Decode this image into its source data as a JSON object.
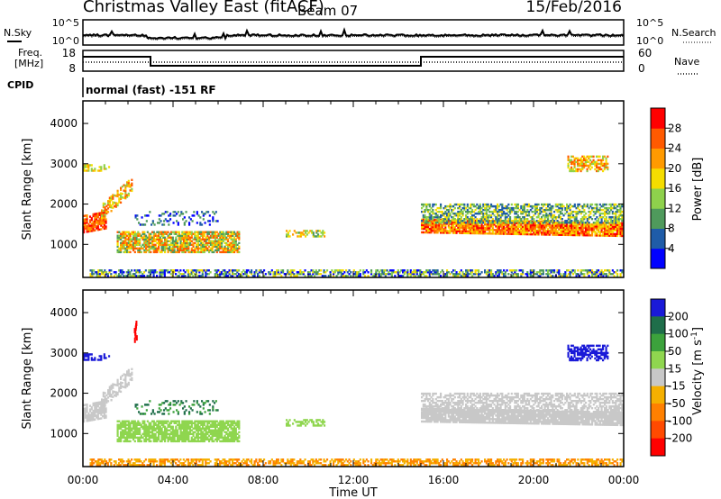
{
  "header": {
    "station": "Christmas Valley East (fitACF)",
    "beam": "Beam 07",
    "date": "15/Feb/2016"
  },
  "strips": {
    "nsky_label": "N.Sky",
    "nsearch_label": "N.Search",
    "noise_ticks_left": [
      "10^5",
      "10^0"
    ],
    "noise_ticks_right": [
      "10^5",
      "10^0"
    ],
    "freq_label_line1": "Freq.",
    "freq_label_line2": "[MHz]",
    "freq_ticks": [
      "18",
      "8"
    ],
    "nave_label": "Nave",
    "nave_ticks": [
      "60",
      "0"
    ],
    "cpid_label": "CPID",
    "cpid_text": "normal (fast) -151 RF"
  },
  "colors": {
    "power_scale": [
      "#0000ff",
      "#1f5ca8",
      "#4f9a5c",
      "#8ed14c",
      "#f5dd00",
      "#ff9a00",
      "#ff5a00",
      "#ff0000"
    ],
    "velocity_scale": [
      "#1a1ad8",
      "#1f6e4a",
      "#3ca23c",
      "#8fd64f",
      "#c8c8c8",
      "#f5b000",
      "#ff8000",
      "#ff4a00",
      "#ff0000"
    ]
  },
  "chart_data": [
    {
      "type": "heatmap",
      "panel": "power",
      "ylabel": "Slant Range [km]",
      "ylim": [
        180,
        4560
      ],
      "y_ticks": [
        "1000",
        "2000",
        "3000",
        "4000"
      ],
      "xlim_hours": [
        0,
        24
      ],
      "x_ticks": [
        "00:00",
        "04:00",
        "08:00",
        "12:00",
        "16:00",
        "20:00",
        "00:00"
      ],
      "colorbar_label": "Power [dB]",
      "colorbar_ticks": [
        "4",
        "8",
        "12",
        "16",
        "20",
        "24",
        "28"
      ]
    },
    {
      "type": "heatmap",
      "panel": "velocity",
      "ylabel": "Slant Range [km]",
      "ylim": [
        180,
        4560
      ],
      "y_ticks": [
        "1000",
        "2000",
        "3000",
        "4000"
      ],
      "xlim_hours": [
        0,
        24
      ],
      "x_ticks": [
        "00:00",
        "04:00",
        "08:00",
        "12:00",
        "16:00",
        "20:00",
        "00:00"
      ],
      "xlabel": "Time UT",
      "colorbar_label": "Velocity [m s^-1]",
      "colorbar_ticks": [
        "200",
        "100",
        "50",
        "15",
        "-15",
        "-50",
        "-100",
        "-200"
      ]
    }
  ]
}
